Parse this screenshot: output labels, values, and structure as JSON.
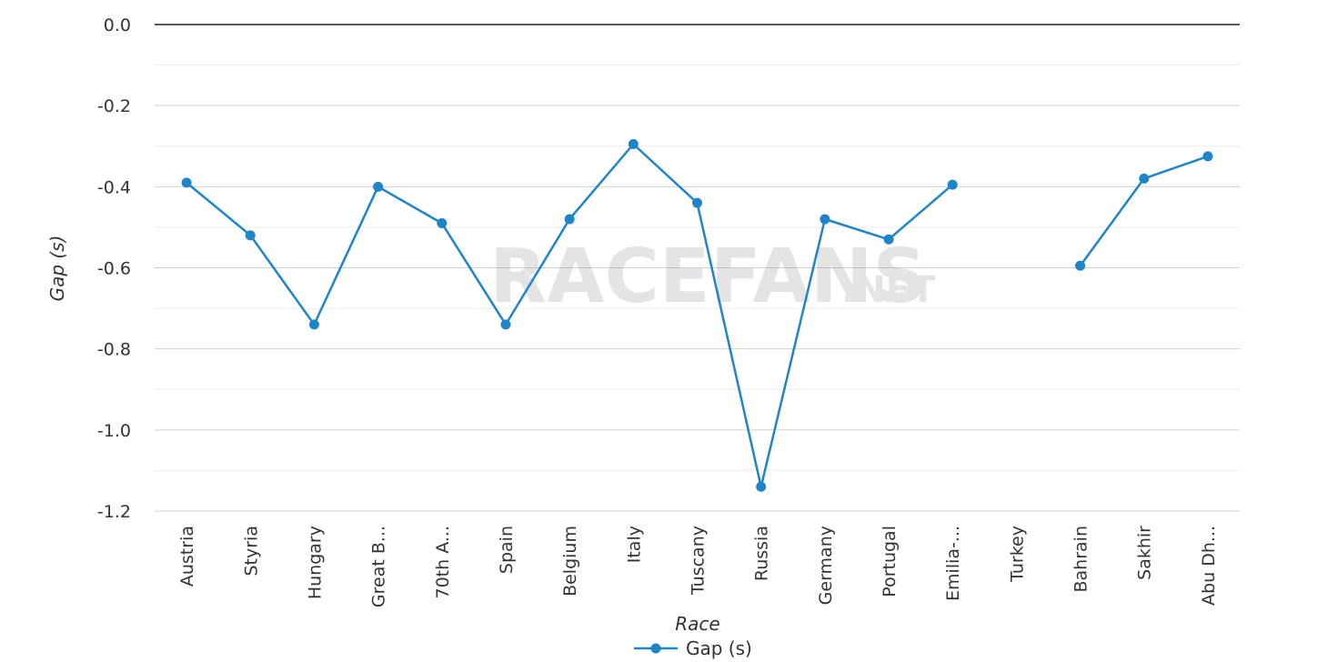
{
  "brand": {
    "watermark_main": "RACEFANS",
    "watermark_suffix": ".NET"
  },
  "colors": {
    "series": "#1f85c9",
    "grid_major": "#d0d0d0",
    "grid_minor": "#ebebeb",
    "zero_line": "#222222",
    "text": "#333333"
  },
  "chart_data": {
    "type": "line",
    "xlabel": "Race",
    "ylabel": "Gap (s)",
    "ylim": [
      -1.2,
      0.0
    ],
    "yticks": [
      "0.0",
      "-0.2",
      "-0.4",
      "-0.6",
      "-0.8",
      "-1.0",
      "-1.2"
    ],
    "categories": [
      "Austria",
      "Styria",
      "Hungary",
      "Great B...",
      "70th A...",
      "Spain",
      "Belgium",
      "Italy",
      "Tuscany",
      "Russia",
      "Germany",
      "Portugal",
      "Emilia-...",
      "Turkey",
      "Bahrain",
      "Sakhir",
      "Abu Dh..."
    ],
    "series": [
      {
        "name": "Gap (s)",
        "values": [
          -0.39,
          -0.52,
          -0.74,
          -0.4,
          -0.49,
          -0.74,
          -0.48,
          -0.295,
          -0.44,
          -1.14,
          -0.48,
          -0.53,
          -0.395,
          null,
          -0.595,
          -0.38,
          -0.325
        ]
      }
    ],
    "grid": true,
    "legend": "bottom-center"
  }
}
